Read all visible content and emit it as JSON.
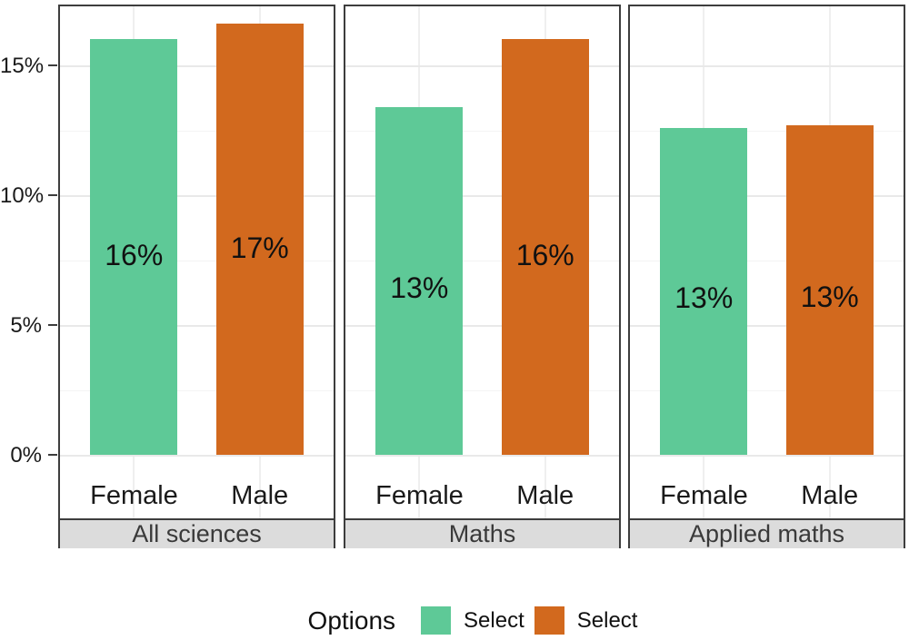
{
  "chart_data": {
    "type": "bar",
    "title": "",
    "categories": [
      "Female",
      "Male"
    ],
    "colors": [
      "#5ec997",
      "#d2691e"
    ],
    "facets": [
      {
        "label": "All sciences",
        "values": [
          16.0,
          16.6
        ],
        "bar_labels": [
          "16%",
          "17%"
        ]
      },
      {
        "label": "Maths",
        "values": [
          13.4,
          16.0
        ],
        "bar_labels": [
          "13%",
          "16%"
        ]
      },
      {
        "label": "Applied maths",
        "values": [
          12.6,
          12.7
        ],
        "bar_labels": [
          "13%",
          "13%"
        ]
      }
    ],
    "xlabel": "",
    "ylabel": "",
    "y_ticks": [
      "0%",
      "5%",
      "10%",
      "15%"
    ],
    "ylim": [
      0,
      17.4
    ],
    "grid": "on",
    "legend": {
      "title": "Options",
      "position": "bottom",
      "items": [
        {
          "label": "Select",
          "color": "#5ec997"
        },
        {
          "label": "Select",
          "color": "#d2691e"
        }
      ]
    }
  }
}
